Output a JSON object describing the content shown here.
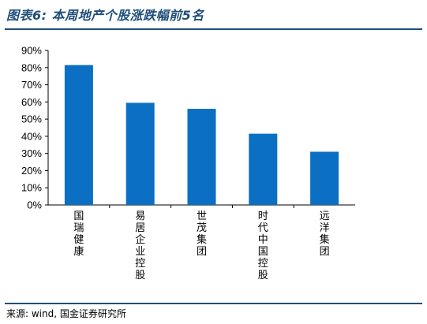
{
  "title": "图表6: 本周地产个股涨跌幅前5名",
  "source": "来源: wind, 国金证券研究所",
  "colors": {
    "bar": "#0b6fc3",
    "rule": "#1f4e79"
  },
  "chart_data": {
    "type": "bar",
    "categories": [
      "国瑞健康",
      "易居企业控股",
      "世茂集团",
      "时代中国控股",
      "远洋集团"
    ],
    "values": [
      81.5,
      59.5,
      56.0,
      41.5,
      31.0
    ],
    "ylim": [
      0,
      90
    ],
    "yticks": [
      "0%",
      "10%",
      "20%",
      "30%",
      "40%",
      "50%",
      "60%",
      "70%",
      "80%",
      "90%"
    ],
    "grid": false,
    "legend": "none"
  }
}
